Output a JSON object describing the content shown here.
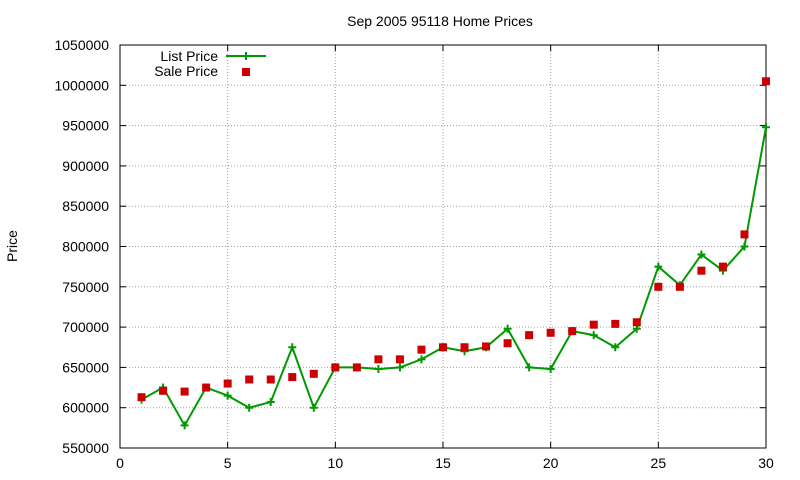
{
  "chart_data": {
    "type": "line",
    "title": "Sep 2005 95118 Home Prices",
    "xlabel": "",
    "ylabel": "Price",
    "xlim": [
      0,
      30
    ],
    "ylim": [
      550000,
      1050000
    ],
    "x_ticks": [
      "0",
      "5",
      "10",
      "15",
      "20",
      "25",
      "30"
    ],
    "y_ticks": [
      "550000",
      "600000",
      "650000",
      "700000",
      "750000",
      "800000",
      "850000",
      "900000",
      "950000",
      "1000000",
      "1050000"
    ],
    "grid": true,
    "legend_position": "top-left",
    "x": [
      1,
      2,
      3,
      4,
      5,
      6,
      7,
      8,
      9,
      10,
      11,
      12,
      13,
      14,
      15,
      16,
      17,
      18,
      19,
      20,
      21,
      22,
      23,
      24,
      25,
      26,
      27,
      28,
      29,
      30
    ],
    "series": [
      {
        "name": "List Price",
        "style": "lines+points",
        "marker": "plus",
        "color": "#009900",
        "values": [
          610000,
          625000,
          578000,
          625000,
          615000,
          600000,
          607000,
          675000,
          600000,
          650000,
          650000,
          648000,
          650000,
          660000,
          675000,
          670000,
          675000,
          698000,
          650000,
          648000,
          695000,
          690000,
          675000,
          698000,
          775000,
          752000,
          790000,
          770000,
          800000,
          948000
        ]
      },
      {
        "name": "Sale Price",
        "style": "points",
        "marker": "square",
        "color": "#cc0000",
        "values": [
          613000,
          621000,
          620000,
          625000,
          630000,
          635000,
          635000,
          638000,
          642000,
          650000,
          650000,
          660000,
          660000,
          672000,
          675000,
          675000,
          676000,
          680000,
          690000,
          693000,
          695000,
          703000,
          704000,
          706000,
          750000,
          750000,
          770000,
          775000,
          815000,
          1005000
        ]
      }
    ]
  }
}
